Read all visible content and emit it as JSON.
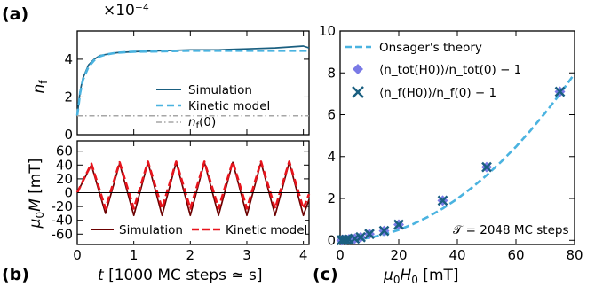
{
  "figure": {
    "panels": {
      "a": "(a)",
      "b": "(b)",
      "c": "(c)"
    }
  },
  "chart_data": [
    {
      "panel": "(a)",
      "type": "line",
      "title": "",
      "xlabel": "",
      "ylabel": "n_f",
      "ylabel_main": "n",
      "ylabel_sub": "f",
      "y_multiplier": "×10⁻⁴",
      "xlim": [
        0,
        4.1
      ],
      "ylim": [
        0,
        5.5
      ],
      "x_ticks": [
        0,
        1,
        2,
        3,
        4
      ],
      "y_ticks": [
        0,
        2,
        4
      ],
      "y_tick_labels": [
        "0",
        "2",
        "4"
      ],
      "grid": false,
      "legend_position": "bottom-right",
      "series": [
        {
          "name": "Simulation",
          "color": "#1a5f80",
          "style": "solid",
          "x": [
            0,
            0.05,
            0.1,
            0.2,
            0.3,
            0.4,
            0.5,
            0.7,
            1.0,
            1.5,
            2.0,
            2.5,
            3.0,
            3.5,
            4.0,
            4.1
          ],
          "y": [
            1.0,
            2.3,
            3.0,
            3.7,
            4.0,
            4.2,
            4.25,
            4.35,
            4.4,
            4.45,
            4.5,
            4.5,
            4.55,
            4.6,
            4.7,
            4.6
          ]
        },
        {
          "name": "Kinetic model",
          "color": "#4ab3e0",
          "style": "dashed",
          "x": [
            0,
            0.05,
            0.1,
            0.2,
            0.3,
            0.4,
            0.5,
            0.7,
            1.0,
            1.5,
            2.0,
            2.5,
            3.0,
            3.5,
            4.0,
            4.1
          ],
          "y": [
            1.0,
            2.2,
            2.9,
            3.6,
            3.95,
            4.15,
            4.25,
            4.35,
            4.4,
            4.42,
            4.45,
            4.45,
            4.45,
            4.45,
            4.45,
            4.45
          ]
        },
        {
          "name": "n_f(0)",
          "name_main": "n",
          "name_sub": "f",
          "name_suffix": "(0)",
          "color": "#a6a6a6",
          "style": "dashdot",
          "x": [
            0,
            4.1
          ],
          "y": [
            1.0,
            1.0
          ]
        }
      ]
    },
    {
      "panel": "(b)",
      "type": "line",
      "title": "",
      "xlabel": "t [1000 MC steps ≃ s]",
      "xlabel_var": "t",
      "xlabel_rest": " [1000 MC steps ≃ s]",
      "ylabel": "μ0M [mT]",
      "ylabel_pre": "μ",
      "ylabel_sub": "0",
      "ylabel_var": "M",
      "ylabel_unit": " [mT]",
      "xlim": [
        0,
        4.1
      ],
      "ylim": [
        -75,
        75
      ],
      "x_ticks": [
        0,
        1,
        2,
        3,
        4
      ],
      "y_ticks": [
        -60,
        -40,
        -20,
        0,
        20,
        40,
        60
      ],
      "grid": false,
      "legend_position": "bottom",
      "series": [
        {
          "name": "Simulation",
          "color": "#6b0000",
          "style": "solid",
          "x": [
            0,
            0.25,
            0.5,
            0.75,
            1.0,
            1.25,
            1.5,
            1.75,
            2.0,
            2.25,
            2.5,
            2.75,
            3.0,
            3.25,
            3.5,
            3.75,
            4.0,
            4.1
          ],
          "y": [
            0,
            40,
            -30,
            42,
            -33,
            44,
            -33,
            44,
            -33,
            44,
            -33,
            44,
            -33,
            44,
            -33,
            44,
            -33,
            -10
          ]
        },
        {
          "name": "Kinetic model",
          "color": "#e8141c",
          "style": "dashed",
          "x": [
            0,
            0.25,
            0.5,
            0.75,
            1.0,
            1.25,
            1.5,
            1.75,
            2.0,
            2.25,
            2.5,
            2.75,
            3.0,
            3.25,
            3.5,
            3.75,
            4.0,
            4.1
          ],
          "y": [
            0,
            42,
            -23,
            44,
            -23,
            45,
            -23,
            45,
            -23,
            45,
            -23,
            45,
            -23,
            45,
            -23,
            45,
            -23,
            -2
          ]
        },
        {
          "name": "",
          "color": "#000000",
          "style": "solid",
          "x": [
            0,
            4.1
          ],
          "y": [
            0,
            0
          ]
        }
      ]
    },
    {
      "panel": "(c)",
      "type": "scatter",
      "title": "",
      "xlabel": "μ0H0 [mT]",
      "xlabel_pre": "μ",
      "xlabel_sub1": "0",
      "xlabel_var": "H",
      "xlabel_sub2": "0",
      "xlabel_unit": " [mT]",
      "ylabel": "",
      "xlim": [
        0,
        80
      ],
      "ylim": [
        -0.2,
        10
      ],
      "x_ticks": [
        0,
        20,
        40,
        60,
        80
      ],
      "y_ticks": [
        0,
        2,
        4,
        6,
        8,
        10
      ],
      "grid": false,
      "legend_position": "top-left",
      "annotation": "𝒯 = 2048 MC steps",
      "series": [
        {
          "name": "Onsager's theory",
          "color": "#4ab3e0",
          "style": "dashed",
          "x": [
            0,
            5,
            10,
            15,
            20,
            25,
            30,
            35,
            40,
            45,
            50,
            55,
            60,
            65,
            70,
            75,
            80
          ],
          "y": [
            0,
            0.03,
            0.12,
            0.28,
            0.5,
            0.78,
            1.12,
            1.52,
            1.99,
            2.52,
            3.11,
            3.76,
            4.47,
            5.25,
            6.09,
            6.99,
            7.96
          ]
        },
        {
          "name": "⟨n_tot(H0)⟩/n_tot(0) − 1",
          "marker": "diamond",
          "color": "#7a7ae6",
          "x": [
            0.5,
            1,
            2,
            3,
            5,
            7,
            10,
            15,
            20,
            35,
            50,
            75
          ],
          "y": [
            0.0,
            0.02,
            0.03,
            0.05,
            0.08,
            0.15,
            0.3,
            0.45,
            0.75,
            1.9,
            3.5,
            7.1
          ]
        },
        {
          "name": "⟨n_f(H0)⟩/n_f(0) − 1",
          "marker": "x",
          "color": "#1a5f80",
          "x": [
            0.5,
            1,
            2,
            3,
            5,
            7,
            10,
            15,
            20,
            35,
            50,
            75
          ],
          "y": [
            0.0,
            0.02,
            0.03,
            0.05,
            0.08,
            0.15,
            0.3,
            0.45,
            0.75,
            1.9,
            3.5,
            7.1
          ]
        }
      ]
    }
  ]
}
